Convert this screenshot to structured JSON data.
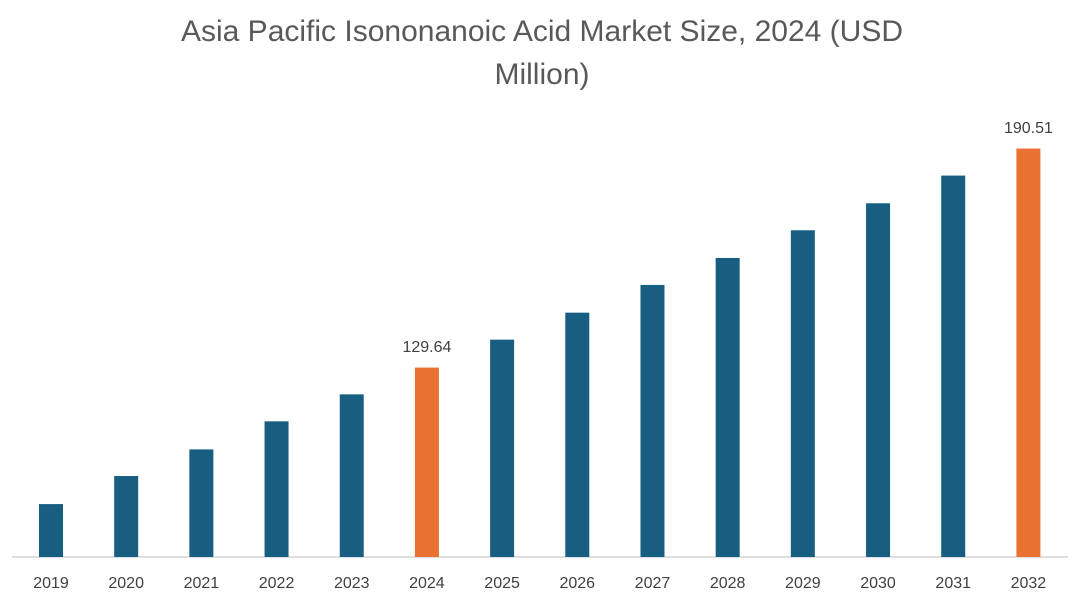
{
  "chart_data": {
    "type": "bar",
    "title": "Asia Pacific Isononanoic Acid Market Size, 2024 (USD Million)",
    "categories": [
      "2019",
      "2020",
      "2021",
      "2022",
      "2023",
      "2024",
      "2025",
      "2026",
      "2027",
      "2028",
      "2029",
      "2030",
      "2031",
      "2032"
    ],
    "values": [
      91.7,
      99.5,
      106.9,
      114.7,
      122.2,
      129.64,
      137.4,
      144.9,
      152.6,
      160.1,
      167.8,
      175.3,
      183.0,
      190.51
    ],
    "value_labels": [
      null,
      null,
      null,
      null,
      null,
      "129.64",
      null,
      null,
      null,
      null,
      null,
      null,
      null,
      "190.51"
    ],
    "colors": [
      "#175e80",
      "#175e80",
      "#175e80",
      "#175e80",
      "#175e80",
      "#e97132",
      "#175e80",
      "#175e80",
      "#175e80",
      "#175e80",
      "#175e80",
      "#175e80",
      "#175e80",
      "#e97132"
    ],
    "ylim": [
      77,
      204
    ]
  }
}
